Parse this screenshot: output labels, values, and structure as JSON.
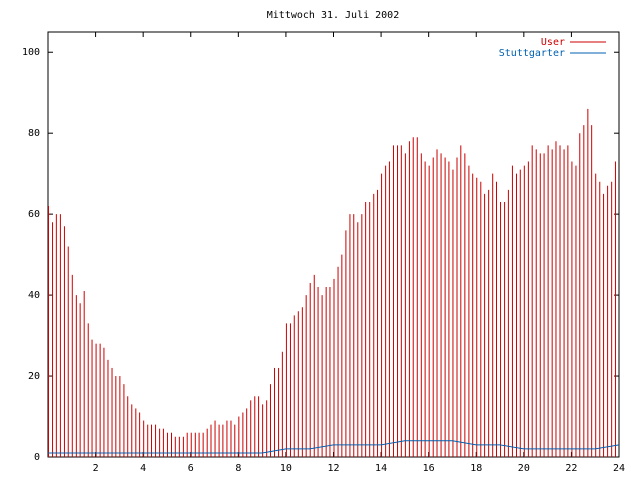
{
  "chart_data": {
    "type": "impulse",
    "title": "Mittwoch 31. Juli 2002",
    "xlim": [
      0,
      24
    ],
    "xticks": [
      2,
      4,
      6,
      8,
      10,
      12,
      14,
      16,
      18,
      20,
      22,
      24
    ],
    "ylim": [
      0,
      105
    ],
    "yticks": [
      0,
      20,
      40,
      60,
      80,
      100
    ],
    "series": [
      {
        "name": "User",
        "color": "#cc0000",
        "style": "impulses",
        "x": [
          0,
          0.17,
          0.33,
          0.5,
          0.67,
          0.83,
          1,
          1.17,
          1.33,
          1.5,
          1.67,
          1.83,
          2,
          2.17,
          2.33,
          2.5,
          2.67,
          2.83,
          3,
          3.17,
          3.33,
          3.5,
          3.67,
          3.83,
          4,
          4.17,
          4.33,
          4.5,
          4.67,
          4.83,
          5,
          5.17,
          5.33,
          5.5,
          5.67,
          5.83,
          6,
          6.17,
          6.33,
          6.5,
          6.67,
          6.83,
          7,
          7.17,
          7.33,
          7.5,
          7.67,
          7.83,
          8,
          8.17,
          8.33,
          8.5,
          8.67,
          8.83,
          9,
          9.17,
          9.33,
          9.5,
          9.67,
          9.83,
          10,
          10.17,
          10.33,
          10.5,
          10.67,
          10.83,
          11,
          11.17,
          11.33,
          11.5,
          11.67,
          11.83,
          12,
          12.17,
          12.33,
          12.5,
          12.67,
          12.83,
          13,
          13.17,
          13.33,
          13.5,
          13.67,
          13.83,
          14,
          14.17,
          14.33,
          14.5,
          14.67,
          14.83,
          15,
          15.17,
          15.33,
          15.5,
          15.67,
          15.83,
          16,
          16.17,
          16.33,
          16.5,
          16.67,
          16.83,
          17,
          17.17,
          17.33,
          17.5,
          17.67,
          17.83,
          18,
          18.17,
          18.33,
          18.5,
          18.67,
          18.83,
          19,
          19.17,
          19.33,
          19.5,
          19.67,
          19.83,
          20,
          20.17,
          20.33,
          20.5,
          20.67,
          20.83,
          21,
          21.17,
          21.33,
          21.5,
          21.67,
          21.83,
          22,
          22.17,
          22.33,
          22.5,
          22.67,
          22.83,
          23,
          23.17,
          23.33,
          23.5,
          23.67,
          23.83
        ],
        "values": [
          62,
          58,
          60,
          60,
          57,
          52,
          45,
          40,
          38,
          41,
          33,
          29,
          28,
          28,
          27,
          24,
          22,
          20,
          20,
          18,
          15,
          13,
          12,
          11,
          9,
          8,
          8,
          8,
          7,
          7,
          6,
          6,
          5,
          5,
          5,
          6,
          6,
          6,
          6,
          6,
          7,
          8,
          9,
          8,
          8,
          9,
          9,
          8,
          10,
          11,
          12,
          14,
          15,
          15,
          13,
          14,
          18,
          22,
          22,
          26,
          33,
          33,
          35,
          36,
          37,
          40,
          43,
          45,
          42,
          40,
          42,
          42,
          44,
          47,
          50,
          56,
          60,
          60,
          58,
          60,
          63,
          63,
          65,
          66,
          70,
          72,
          73,
          77,
          77,
          77,
          75,
          78,
          79,
          79,
          75,
          73,
          72,
          74,
          76,
          75,
          74,
          73,
          71,
          74,
          77,
          75,
          72,
          70,
          69,
          68,
          65,
          66,
          70,
          68,
          63,
          63,
          66,
          72,
          70,
          71,
          72,
          73,
          77,
          76,
          75,
          75,
          77,
          76,
          78,
          77,
          76,
          77,
          73,
          72,
          80,
          82,
          86,
          82,
          70,
          68,
          65,
          67,
          68,
          73
        ]
      },
      {
        "name": "Stuttgarter",
        "color": "#0060b0",
        "style": "lines",
        "x": [
          0,
          1,
          2,
          3,
          4,
          5,
          6,
          7,
          8,
          9,
          10,
          11,
          12,
          13,
          14,
          15,
          16,
          17,
          18,
          19,
          20,
          21,
          22,
          23,
          24
        ],
        "values": [
          1,
          1,
          1,
          1,
          1,
          1,
          1,
          1,
          1,
          1,
          2,
          2,
          3,
          3,
          3,
          4,
          4,
          4,
          3,
          3,
          2,
          2,
          2,
          2,
          3
        ]
      }
    ]
  }
}
